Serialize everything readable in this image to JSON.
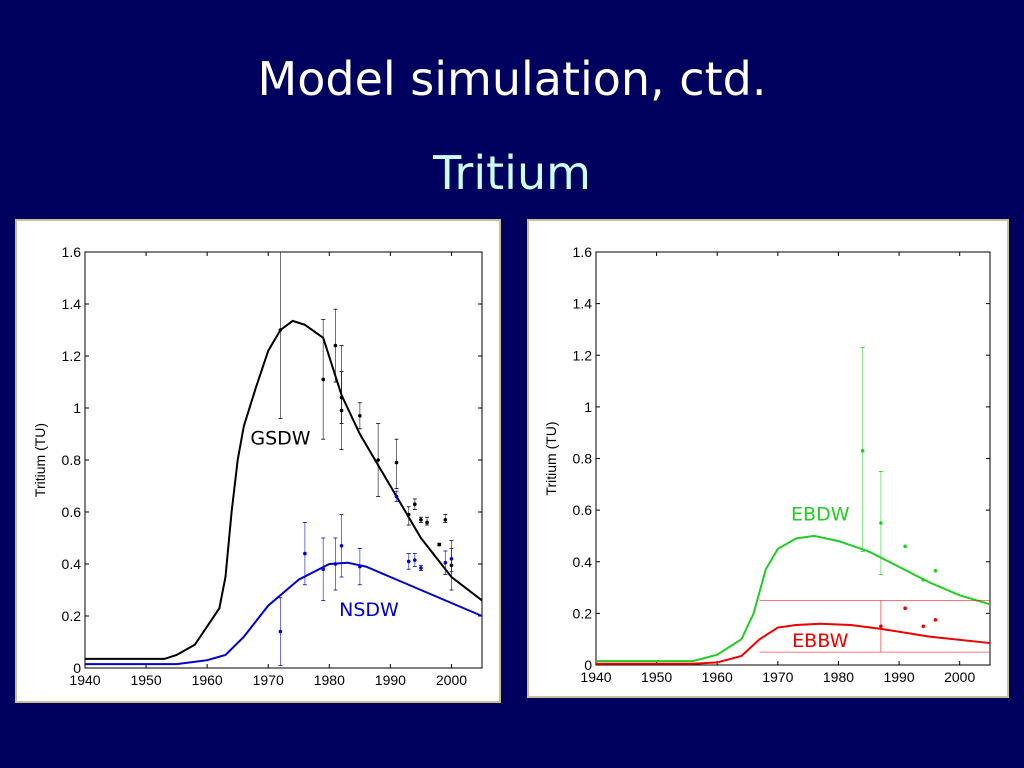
{
  "slide": {
    "title": "Model simulation, ctd.",
    "subtitle": "Tritium"
  },
  "chart_data": [
    {
      "type": "line",
      "xlabel": "",
      "ylabel": "Tritium (TU)",
      "xlim": [
        1940,
        2005
      ],
      "ylim": [
        0,
        1.6
      ],
      "xticks": [
        "1940",
        "1950",
        "1960",
        "1970",
        "1980",
        "1990",
        "2000"
      ],
      "yticks": [
        "0",
        "0.2",
        "0.4",
        "0.6",
        "0.8",
        "1",
        "1.2",
        "1.4",
        "1.6"
      ],
      "series": [
        {
          "name": "GSDW",
          "color": "#000000",
          "label_at": [
            1972,
            0.86
          ],
          "curve": [
            [
              1940,
              0.035
            ],
            [
              1953,
              0.035
            ],
            [
              1955,
              0.05
            ],
            [
              1958,
              0.09
            ],
            [
              1960,
              0.16
            ],
            [
              1962,
              0.23
            ],
            [
              1963,
              0.35
            ],
            [
              1964,
              0.6
            ],
            [
              1965,
              0.8
            ],
            [
              1966,
              0.93
            ],
            [
              1968,
              1.08
            ],
            [
              1970,
              1.22
            ],
            [
              1972,
              1.3
            ],
            [
              1974,
              1.335
            ],
            [
              1976,
              1.32
            ],
            [
              1979,
              1.27
            ],
            [
              1982,
              1.05
            ],
            [
              1985,
              0.9
            ],
            [
              1990,
              0.7
            ],
            [
              1995,
              0.5
            ],
            [
              2000,
              0.35
            ],
            [
              2005,
              0.26
            ]
          ],
          "points": [
            [
              1972,
              1.3,
              0.96,
              1.6
            ],
            [
              1979,
              1.11,
              0.88,
              1.34
            ],
            [
              1981,
              1.24,
              1.1,
              1.38
            ],
            [
              1982,
              1.04,
              0.94,
              1.24
            ],
            [
              1982,
              0.99,
              0.84,
              1.14
            ],
            [
              1985,
              0.97,
              0.92,
              1.02
            ],
            [
              1988,
              0.8,
              0.66,
              0.94
            ],
            [
              1991,
              0.79,
              0.69,
              0.88
            ],
            [
              1993,
              0.59,
              0.55,
              0.62
            ],
            [
              1994,
              0.63,
              0.61,
              0.65
            ],
            [
              1995,
              0.57,
              0.56,
              0.58
            ],
            [
              1996,
              0.56,
              0.55,
              0.58
            ],
            [
              1998,
              0.475,
              0.47,
              0.48
            ],
            [
              1999,
              0.57,
              0.56,
              0.59
            ],
            [
              2000,
              0.395,
              0.3,
              0.49
            ]
          ]
        },
        {
          "name": "NSDW",
          "color": "#0000cc",
          "label_at": [
            1986.5,
            0.2
          ],
          "curve": [
            [
              1940,
              0.015
            ],
            [
              1955,
              0.015
            ],
            [
              1960,
              0.03
            ],
            [
              1963,
              0.05
            ],
            [
              1966,
              0.12
            ],
            [
              1970,
              0.24
            ],
            [
              1975,
              0.34
            ],
            [
              1980,
              0.4
            ],
            [
              1983,
              0.405
            ],
            [
              1986,
              0.39
            ],
            [
              1990,
              0.35
            ],
            [
              1995,
              0.3
            ],
            [
              2000,
              0.25
            ],
            [
              2005,
              0.2
            ]
          ],
          "points": [
            [
              1972,
              0.14,
              0.01,
              0.27
            ],
            [
              1976,
              0.44,
              0.32,
              0.56
            ],
            [
              1979,
              0.38,
              0.26,
              0.5
            ],
            [
              1981,
              0.4,
              0.3,
              0.5
            ],
            [
              1982,
              0.47,
              0.35,
              0.59
            ],
            [
              1985,
              0.39,
              0.32,
              0.46
            ],
            [
              1991,
              0.66,
              0.64,
              0.68
            ],
            [
              1993,
              0.41,
              0.38,
              0.44
            ],
            [
              1994,
              0.415,
              0.39,
              0.44
            ],
            [
              1995,
              0.385,
              0.375,
              0.395
            ],
            [
              1999,
              0.405,
              0.36,
              0.45
            ],
            [
              2000,
              0.42,
              0.37,
              0.46
            ]
          ]
        }
      ]
    },
    {
      "type": "line",
      "xlabel": "",
      "ylabel": "Tritium (TU)",
      "xlim": [
        1940,
        2005
      ],
      "ylim": [
        0,
        1.6
      ],
      "xticks": [
        "1940",
        "1950",
        "1960",
        "1970",
        "1980",
        "1990",
        "2000"
      ],
      "yticks": [
        "0",
        "0.2",
        "0.4",
        "0.6",
        "0.8",
        "1",
        "1.2",
        "1.4",
        "1.6"
      ],
      "series": [
        {
          "name": "EBDW",
          "color": "#22cc22",
          "label_at": [
            1977,
            0.56
          ],
          "curve": [
            [
              1940,
              0.015
            ],
            [
              1956,
              0.015
            ],
            [
              1960,
              0.04
            ],
            [
              1964,
              0.1
            ],
            [
              1966,
              0.2
            ],
            [
              1968,
              0.37
            ],
            [
              1970,
              0.45
            ],
            [
              1973,
              0.49
            ],
            [
              1976,
              0.5
            ],
            [
              1980,
              0.48
            ],
            [
              1985,
              0.44
            ],
            [
              1990,
              0.38
            ],
            [
              1995,
              0.32
            ],
            [
              2000,
              0.27
            ],
            [
              2005,
              0.235
            ]
          ],
          "points": [
            [
              1984,
              0.83,
              0.44,
              1.23
            ],
            [
              1987,
              0.55,
              0.35,
              0.75
            ],
            [
              1991,
              0.46,
              0.46,
              0.46
            ],
            [
              1994,
              0.33,
              0.33,
              0.33
            ],
            [
              1996,
              0.365,
              0.365,
              0.365
            ]
          ]
        },
        {
          "name": "EBBW",
          "color": "#ee0000",
          "label_at": [
            1977,
            0.07
          ],
          "curve": [
            [
              1940,
              0.005
            ],
            [
              1956,
              0.005
            ],
            [
              1960,
              0.01
            ],
            [
              1964,
              0.035
            ],
            [
              1967,
              0.1
            ],
            [
              1970,
              0.145
            ],
            [
              1973,
              0.155
            ],
            [
              1977,
              0.16
            ],
            [
              1982,
              0.155
            ],
            [
              1987,
              0.14
            ],
            [
              1995,
              0.11
            ],
            [
              2005,
              0.085
            ]
          ],
          "points": [
            [
              1987,
              0.15,
              0.05,
              0.25
            ],
            [
              1991,
              0.22,
              0.22,
              0.22
            ],
            [
              1994,
              0.15,
              0.15,
              0.15
            ],
            [
              1996,
              0.175,
              0.175,
              0.175
            ]
          ],
          "band": {
            "x": [
              1967,
              2005
            ],
            "y": [
              0.05,
              0.25
            ]
          }
        }
      ]
    }
  ]
}
